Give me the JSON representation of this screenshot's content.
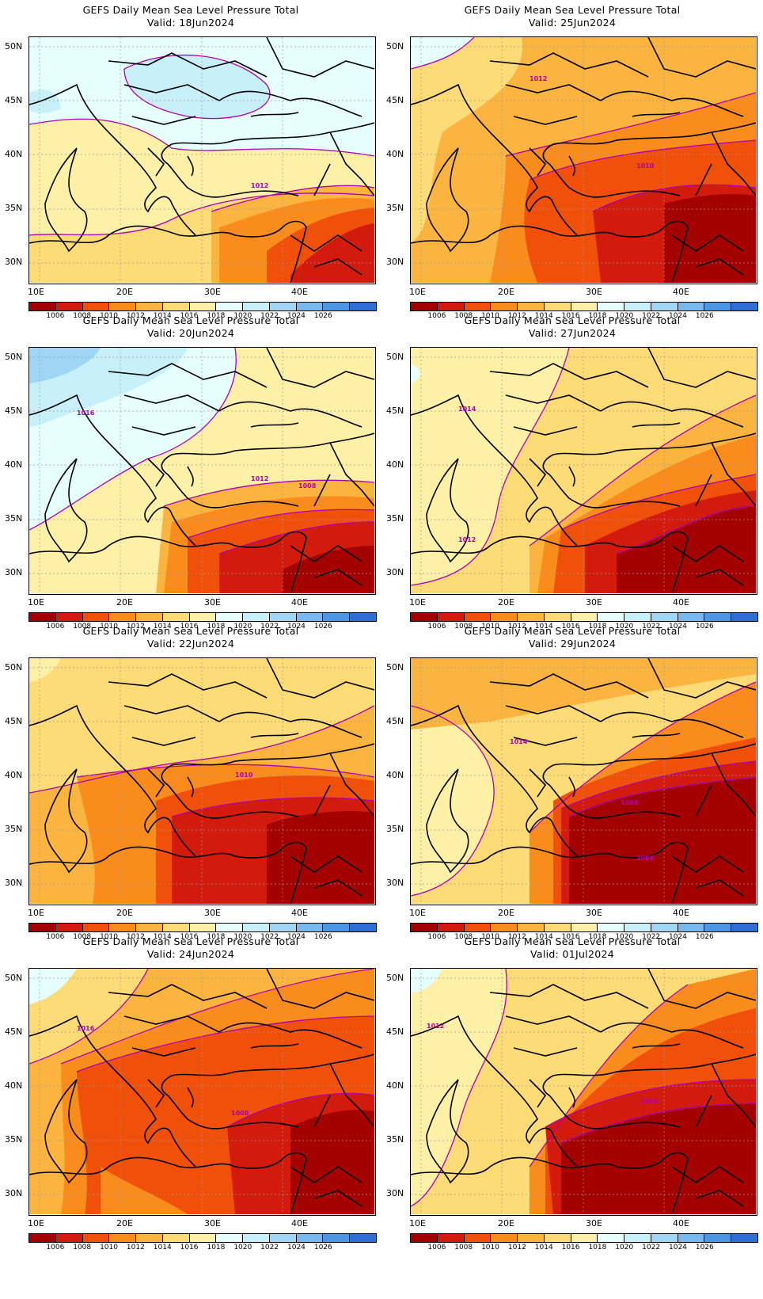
{
  "legend": {
    "colors": [
      "#a50000",
      "#d21a0d",
      "#f0500a",
      "#fa8c1e",
      "#fcb440",
      "#fddc78",
      "#fff0a8",
      "#e6ffff",
      "#c8f0fa",
      "#a0d6f5",
      "#78b8f0",
      "#4c96e6",
      "#2f6ed6"
    ],
    "labels": [
      "1006",
      "1008",
      "1010",
      "1012",
      "1014",
      "1016",
      "1018",
      "1020",
      "1022",
      "1024",
      "1026"
    ]
  },
  "axes": {
    "lat_labels": [
      "50N",
      "45N",
      "40N",
      "35N",
      "30N"
    ],
    "lon_labels": [
      "10E",
      "20E",
      "30E",
      "40E"
    ]
  },
  "panels": [
    {
      "title": "GEFS Daily Mean Sea Level Pressure Total",
      "valid": "Valid:  18Jun2024",
      "contour_labels": [
        "1012"
      ],
      "regime": "high"
    },
    {
      "title": "GEFS Daily Mean Sea Level Pressure Total",
      "valid": "Valid:  25Jun2024",
      "contour_labels": [
        "1012",
        "1010"
      ],
      "regime": "mid"
    },
    {
      "title": "GEFS Daily Mean Sea Level Pressure Total",
      "valid": "Valid:  20Jun2024",
      "contour_labels": [
        "1016",
        "1012",
        "1008"
      ],
      "regime": "high2"
    },
    {
      "title": "GEFS Daily Mean Sea Level Pressure Total",
      "valid": "Valid:  27Jun2024",
      "contour_labels": [
        "1014",
        "1012"
      ],
      "regime": "mid2"
    },
    {
      "title": "GEFS Daily Mean Sea Level Pressure Total",
      "valid": "Valid:  22Jun2024",
      "contour_labels": [
        "1010"
      ],
      "regime": "low"
    },
    {
      "title": "GEFS Daily Mean Sea Level Pressure Total",
      "valid": "Valid:  29Jun2024",
      "contour_labels": [
        "1014",
        "1008",
        "1006"
      ],
      "regime": "low2"
    },
    {
      "title": "GEFS Daily Mean Sea Level Pressure Total",
      "valid": "Valid:  24Jun2024",
      "contour_labels": [
        "1016",
        "1008"
      ],
      "regime": "low3"
    },
    {
      "title": "GEFS Daily Mean Sea Level Pressure Total",
      "valid": "Valid:  01Jul2024",
      "contour_labels": [
        "1012",
        "1008"
      ],
      "regime": "low4"
    }
  ]
}
